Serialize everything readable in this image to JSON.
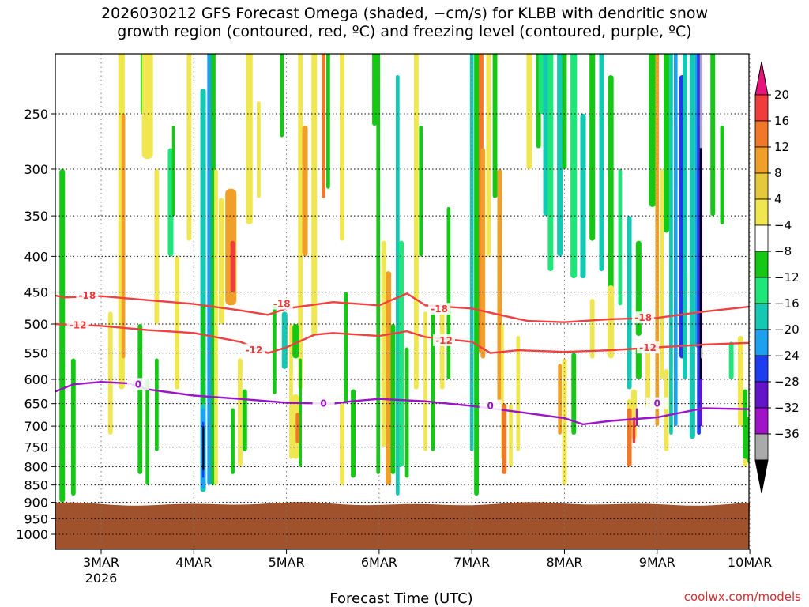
{
  "chart_data": {
    "type": "heatmap",
    "title": {
      "line1": "2026030212 GFS Forecast Omega (shaded, −cm/s) for KLBB with dendritic snow",
      "line2": "growth region (contoured, red, ºC) and freezing level (contoured, purple, ºC)"
    },
    "xlabel": "Forecast Time (UTC)",
    "ylabel": "",
    "credit": "coolwx.com/models",
    "x_ticks": [
      "3MAR",
      "4MAR",
      "5MAR",
      "6MAR",
      "7MAR",
      "8MAR",
      "9MAR",
      "10MAR"
    ],
    "x_year_label": "2026",
    "y_ticks": [
      250,
      300,
      350,
      400,
      450,
      500,
      550,
      600,
      650,
      700,
      750,
      800,
      850,
      900,
      950,
      1000
    ],
    "y_scale": "log-pressure",
    "x_range_days_from_3MAR": [
      -0.5,
      7
    ],
    "colorbar": {
      "levels": [
        20,
        16,
        12,
        8,
        4,
        -4,
        -8,
        -12,
        -16,
        -20,
        -24,
        -28,
        -32,
        -36
      ],
      "colors_top_to_bottom": [
        "#e8147c",
        "#f03c3c",
        "#f07828",
        "#f0a028",
        "#e6c83c",
        "#f0e650",
        "#ffffff",
        "#14c814",
        "#1ee678",
        "#14c8b4",
        "#1ea0f0",
        "#1e3cf0",
        "#6414c8",
        "#a014c8",
        "#aaaaaa",
        "#000000"
      ]
    },
    "contours": [
      {
        "name": "dgz-minus18",
        "label": "-18",
        "color": "#f04040",
        "points": [
          [
            -0.5,
            455
          ],
          [
            -0.4,
            458
          ],
          [
            0,
            456
          ],
          [
            0.5,
            462
          ],
          [
            1,
            468
          ],
          [
            1.5,
            478
          ],
          [
            1.8,
            485
          ],
          [
            2,
            475
          ],
          [
            2.5,
            465
          ],
          [
            3,
            470
          ],
          [
            3.3,
            452
          ],
          [
            3.5,
            470
          ],
          [
            4,
            475
          ],
          [
            4.3,
            485
          ],
          [
            4.6,
            495
          ],
          [
            5,
            497
          ],
          [
            5.5,
            492
          ],
          [
            6,
            490
          ],
          [
            6.5,
            480
          ],
          [
            7,
            472
          ]
        ]
      },
      {
        "name": "dgz-minus12",
        "label": "-12",
        "color": "#f04040",
        "points": [
          [
            -0.5,
            500
          ],
          [
            0,
            503
          ],
          [
            0.5,
            510
          ],
          [
            1,
            515
          ],
          [
            1.5,
            530
          ],
          [
            1.8,
            550
          ],
          [
            2,
            540
          ],
          [
            2.3,
            518
          ],
          [
            2.5,
            515
          ],
          [
            3,
            520
          ],
          [
            3.3,
            512
          ],
          [
            3.5,
            522
          ],
          [
            4,
            530
          ],
          [
            4.2,
            550
          ],
          [
            4.5,
            545
          ],
          [
            5,
            548
          ],
          [
            5.5,
            545
          ],
          [
            6,
            540
          ],
          [
            6.5,
            535
          ],
          [
            7,
            532
          ]
        ]
      },
      {
        "name": "freezing-level",
        "label": "0",
        "color": "#9b14c8",
        "points": [
          [
            -0.5,
            625
          ],
          [
            -0.3,
            610
          ],
          [
            0,
            605
          ],
          [
            0.3,
            608
          ],
          [
            0.5,
            620
          ],
          [
            1,
            633
          ],
          [
            1.5,
            640
          ],
          [
            2,
            648
          ],
          [
            2.5,
            650
          ],
          [
            2.7,
            645
          ],
          [
            3,
            640
          ],
          [
            3.5,
            645
          ],
          [
            4,
            655
          ],
          [
            4.5,
            668
          ],
          [
            5,
            682
          ],
          [
            5.2,
            696
          ],
          [
            5.5,
            688
          ],
          [
            6,
            680
          ],
          [
            6.5,
            660
          ],
          [
            7,
            662
          ]
        ]
      }
    ],
    "contour_labels": [
      {
        "text": "-18",
        "day": -0.15,
        "p": 455
      },
      {
        "text": "-18",
        "day": 1.95,
        "p": 468
      },
      {
        "text": "-18",
        "day": 3.65,
        "p": 476
      },
      {
        "text": "-18",
        "day": 5.85,
        "p": 490
      },
      {
        "text": "-12",
        "day": -0.25,
        "p": 502
      },
      {
        "text": "-12",
        "day": 1.65,
        "p": 545
      },
      {
        "text": "-12",
        "day": 3.7,
        "p": 528
      },
      {
        "text": "-12",
        "day": 5.9,
        "p": 541
      },
      {
        "text": "0",
        "day": 0.4,
        "p": 610
      },
      {
        "text": "0",
        "day": 2.4,
        "p": 650
      },
      {
        "text": "0",
        "day": 4.2,
        "p": 655
      },
      {
        "text": "0",
        "day": 6.0,
        "p": 650
      }
    ]
  }
}
